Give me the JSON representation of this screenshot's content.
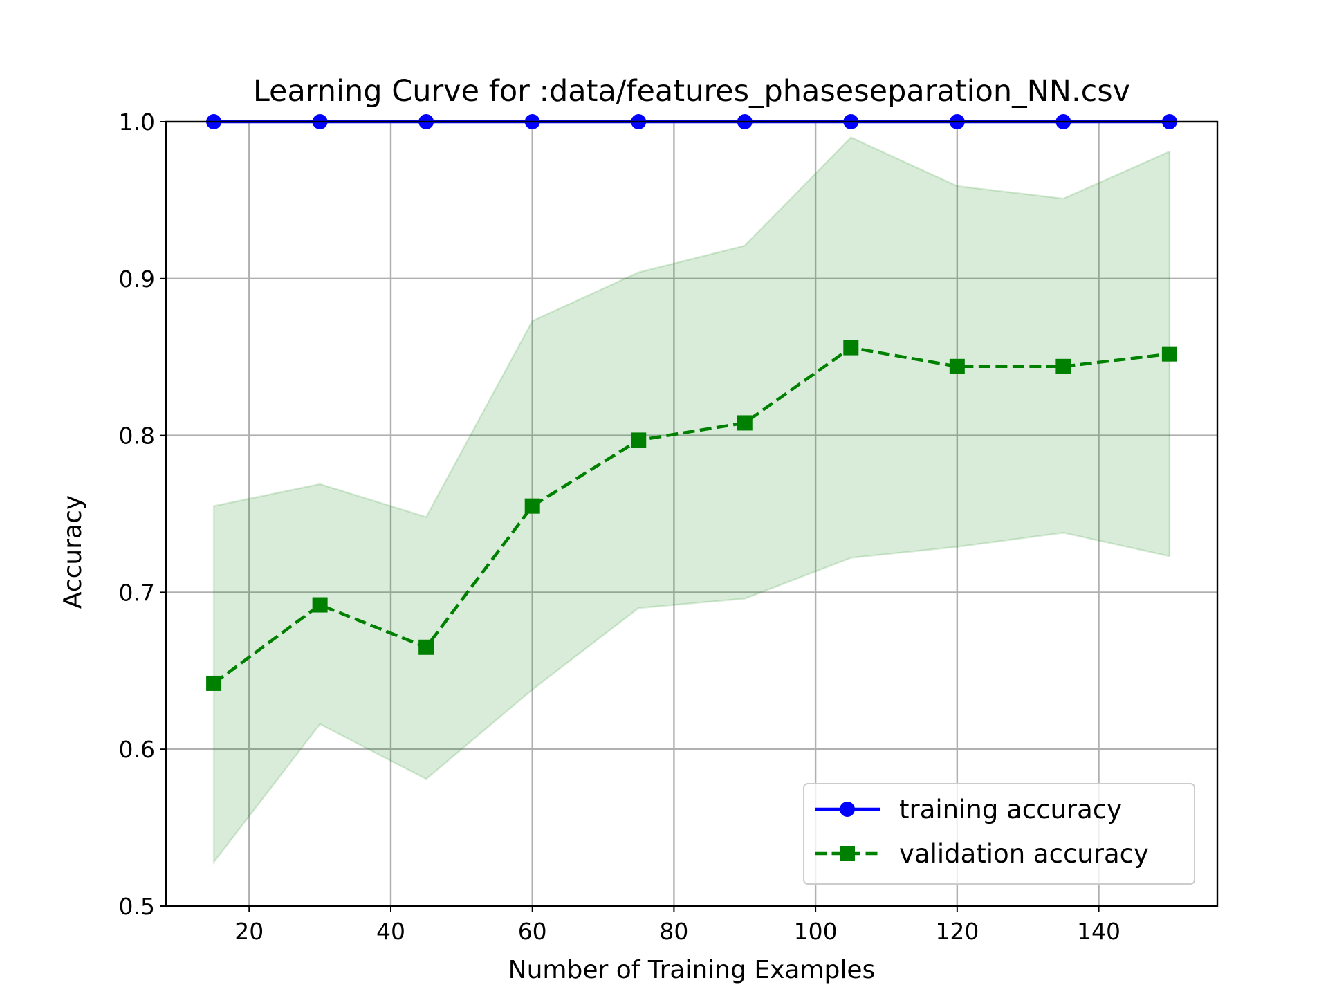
{
  "chart_data": {
    "type": "line",
    "title": "Learning Curve for :data/features_phaseseparation_NN.csv",
    "xlabel": "Number of Training Examples",
    "ylabel": "Accuracy",
    "xlim": [
      8.25,
      156.75
    ],
    "ylim": [
      0.5,
      1.0
    ],
    "x_ticks": [
      20,
      40,
      60,
      80,
      100,
      120,
      140
    ],
    "y_ticks": [
      0.5,
      0.6,
      0.7,
      0.8,
      0.9,
      1.0
    ],
    "x_tick_labels": [
      "20",
      "40",
      "60",
      "80",
      "100",
      "120",
      "140"
    ],
    "y_tick_labels": [
      "0.5",
      "0.6",
      "0.7",
      "0.8",
      "0.9",
      "1.0"
    ],
    "grid": true,
    "legend_position": "lower right",
    "x": [
      15,
      30,
      45,
      60,
      75,
      90,
      105,
      120,
      135,
      150
    ],
    "series": [
      {
        "name": "training accuracy",
        "color": "#0000ff",
        "marker": "circle",
        "line_style": "solid",
        "values": [
          1.0,
          1.0,
          1.0,
          1.0,
          1.0,
          1.0,
          1.0,
          1.0,
          1.0,
          1.0
        ]
      },
      {
        "name": "validation accuracy",
        "color": "#008000",
        "marker": "square",
        "line_style": "dashed",
        "values": [
          0.642,
          0.692,
          0.665,
          0.755,
          0.797,
          0.808,
          0.856,
          0.844,
          0.844,
          0.852
        ],
        "band_upper": [
          0.755,
          0.769,
          0.748,
          0.873,
          0.904,
          0.921,
          0.99,
          0.959,
          0.951,
          0.981
        ],
        "band_lower": [
          0.528,
          0.616,
          0.581,
          0.638,
          0.69,
          0.696,
          0.722,
          0.729,
          0.738,
          0.723
        ],
        "band_color": "#008000"
      }
    ]
  }
}
